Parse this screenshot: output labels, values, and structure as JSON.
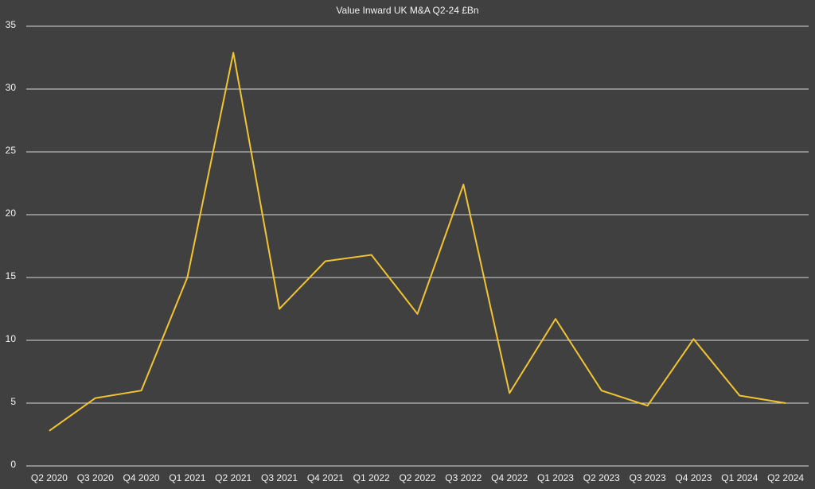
{
  "chart_data": {
    "type": "line",
    "title": "Value Inward UK M&A Q2-24 £Bn",
    "categories": [
      "Q2 2020",
      "Q3 2020",
      "Q4 2020",
      "Q1 2021",
      "Q2 2021",
      "Q3 2021",
      "Q4 2021",
      "Q1 2022",
      "Q2 2022",
      "Q3 2022",
      "Q4 2022",
      "Q1 2023",
      "Q2 2023",
      "Q3 2023",
      "Q4 2023",
      "Q1 2024",
      "Q2 2024"
    ],
    "values": [
      2.8,
      5.4,
      6.0,
      15.0,
      32.9,
      12.5,
      16.3,
      16.8,
      12.1,
      22.4,
      5.8,
      11.7,
      6.0,
      4.8,
      10.1,
      5.6,
      5.0
    ],
    "color": "#f2c431",
    "ylim": [
      0,
      35
    ],
    "yticks": [
      0,
      5,
      10,
      15,
      20,
      25,
      30,
      35
    ],
    "grid": true
  }
}
